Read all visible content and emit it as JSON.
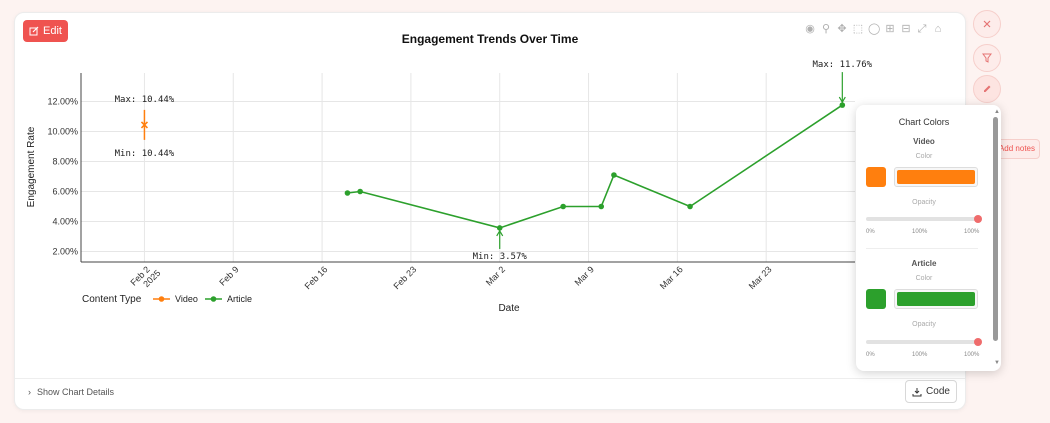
{
  "toolbar": {
    "edit_label": "Edit"
  },
  "footer": {
    "details_label": "Show Chart Details",
    "code_label": "Code"
  },
  "notes_label": "Add notes",
  "colors": {
    "video": "#ff7f0e",
    "article": "#2ca02c",
    "accent": "#ef5350"
  },
  "chart_data": {
    "type": "line",
    "title": "Engagement Trends Over Time",
    "xlabel": "Date",
    "ylabel": "Engagement Rate",
    "legend_title": "Content Type",
    "legend_position": "bottom-left",
    "grid": true,
    "x_ticks": [
      {
        "label": "Feb 2",
        "label2": "2025",
        "date": "2025-02-02"
      },
      {
        "label": "Feb 9",
        "date": "2025-02-09"
      },
      {
        "label": "Feb 16",
        "date": "2025-02-16"
      },
      {
        "label": "Feb 23",
        "date": "2025-02-23"
      },
      {
        "label": "Mar 2",
        "date": "2025-03-02"
      },
      {
        "label": "Mar 9",
        "date": "2025-03-09"
      },
      {
        "label": "Mar 16",
        "date": "2025-03-16"
      },
      {
        "label": "Mar 23",
        "date": "2025-03-23"
      }
    ],
    "y_ticks": [
      2,
      4,
      6,
      8,
      10,
      12
    ],
    "y_tick_labels": [
      "2.00%",
      "4.00%",
      "6.00%",
      "8.00%",
      "10.00%",
      "12.00%"
    ],
    "xlim": [
      "2025-01-28",
      "2025-03-30"
    ],
    "ylim": [
      1.3,
      13.9
    ],
    "series": [
      {
        "name": "Video",
        "color": "#ff7f0e",
        "x": [
          "2025-02-02"
        ],
        "y": [
          10.44
        ],
        "error": [
          1.0
        ]
      },
      {
        "name": "Article",
        "color": "#2ca02c",
        "x": [
          "2025-02-18",
          "2025-02-19",
          "2025-03-02",
          "2025-03-07",
          "2025-03-10",
          "2025-03-11",
          "2025-03-17",
          "2025-03-29"
        ],
        "y": [
          5.9,
          6.0,
          3.57,
          5.0,
          5.0,
          7.1,
          5.0,
          11.76
        ]
      }
    ],
    "annotations": [
      {
        "text": "Max: 10.44%",
        "x": "2025-02-02",
        "y": 10.44,
        "position": "above"
      },
      {
        "text": "Min: 10.44%",
        "x": "2025-02-02",
        "y": 10.44,
        "position": "below"
      },
      {
        "text": "Min: 3.57%",
        "x": "2025-03-02",
        "y": 3.57,
        "position": "below",
        "arrow": true
      },
      {
        "text": "Max: 11.76%",
        "x": "2025-03-29",
        "y": 11.76,
        "position": "above",
        "arrow": true
      }
    ]
  },
  "color_panel": {
    "title": "Chart Colors",
    "sections": [
      {
        "name": "Video",
        "color_label": "Color",
        "color": "#ff7f0e",
        "opacity_label": "Opacity",
        "opacity": 1.0,
        "ticks": [
          "0%",
          "100%",
          "100%"
        ]
      },
      {
        "name": "Article",
        "color_label": "Color",
        "color": "#2ca02c",
        "opacity_label": "Opacity",
        "opacity": 1.0,
        "ticks": [
          "0%",
          "100%",
          "100%"
        ]
      }
    ]
  }
}
